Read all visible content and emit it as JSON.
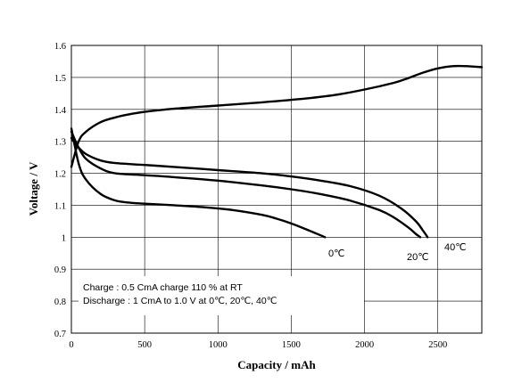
{
  "chart_data": {
    "type": "line",
    "xlabel": "Capacity / mAh",
    "ylabel": "Voltage / V",
    "xlim": [
      0,
      2800
    ],
    "ylim": [
      0.7,
      1.6
    ],
    "x_ticks": [
      0,
      500,
      1000,
      1500,
      2000,
      2500
    ],
    "y_ticks": [
      "0.7",
      "0.8",
      "0.9",
      "1",
      "1.1",
      "1.2",
      "1.3",
      "1.4",
      "1.5",
      "1.6"
    ],
    "grid": true,
    "annotations": [
      "Charge : 0.5 CmA charge 110 % at RT",
      "Discharge : 1 CmA to 1.0 V at 0℃, 20℃, 40℃"
    ],
    "series": [
      {
        "kind": "charge",
        "x": [
          0,
          50,
          100,
          200,
          300,
          400,
          500,
          700,
          1000,
          1300,
          1600,
          1800,
          2000,
          2200,
          2300,
          2400,
          2500,
          2600,
          2700,
          2800
        ],
        "y": [
          1.22,
          1.3,
          1.33,
          1.36,
          1.375,
          1.385,
          1.392,
          1.402,
          1.412,
          1.422,
          1.434,
          1.445,
          1.462,
          1.483,
          1.498,
          1.515,
          1.528,
          1.535,
          1.535,
          1.532
        ]
      },
      {
        "name": "0℃",
        "kind": "discharge",
        "x": [
          0,
          50,
          100,
          200,
          300,
          400,
          500,
          700,
          900,
          1100,
          1300,
          1400,
          1500,
          1600,
          1700,
          1730
        ],
        "y": [
          1.34,
          1.23,
          1.18,
          1.135,
          1.115,
          1.108,
          1.105,
          1.1,
          1.094,
          1.085,
          1.07,
          1.058,
          1.043,
          1.025,
          1.006,
          1.0
        ]
      },
      {
        "name": "20℃",
        "kind": "discharge",
        "x": [
          0,
          50,
          100,
          200,
          300,
          500,
          700,
          1000,
          1300,
          1500,
          1700,
          1900,
          2100,
          2200,
          2300,
          2350,
          2380
        ],
        "y": [
          1.33,
          1.28,
          1.245,
          1.215,
          1.2,
          1.194,
          1.188,
          1.177,
          1.162,
          1.15,
          1.135,
          1.115,
          1.085,
          1.062,
          1.03,
          1.01,
          1.0
        ]
      },
      {
        "name": "40℃",
        "kind": "discharge",
        "x": [
          0,
          50,
          100,
          200,
          300,
          500,
          700,
          1000,
          1300,
          1500,
          1700,
          1900,
          2100,
          2250,
          2350,
          2400,
          2430
        ],
        "y": [
          1.31,
          1.28,
          1.26,
          1.24,
          1.232,
          1.226,
          1.22,
          1.21,
          1.2,
          1.19,
          1.177,
          1.16,
          1.13,
          1.09,
          1.05,
          1.02,
          1.0
        ]
      }
    ]
  }
}
